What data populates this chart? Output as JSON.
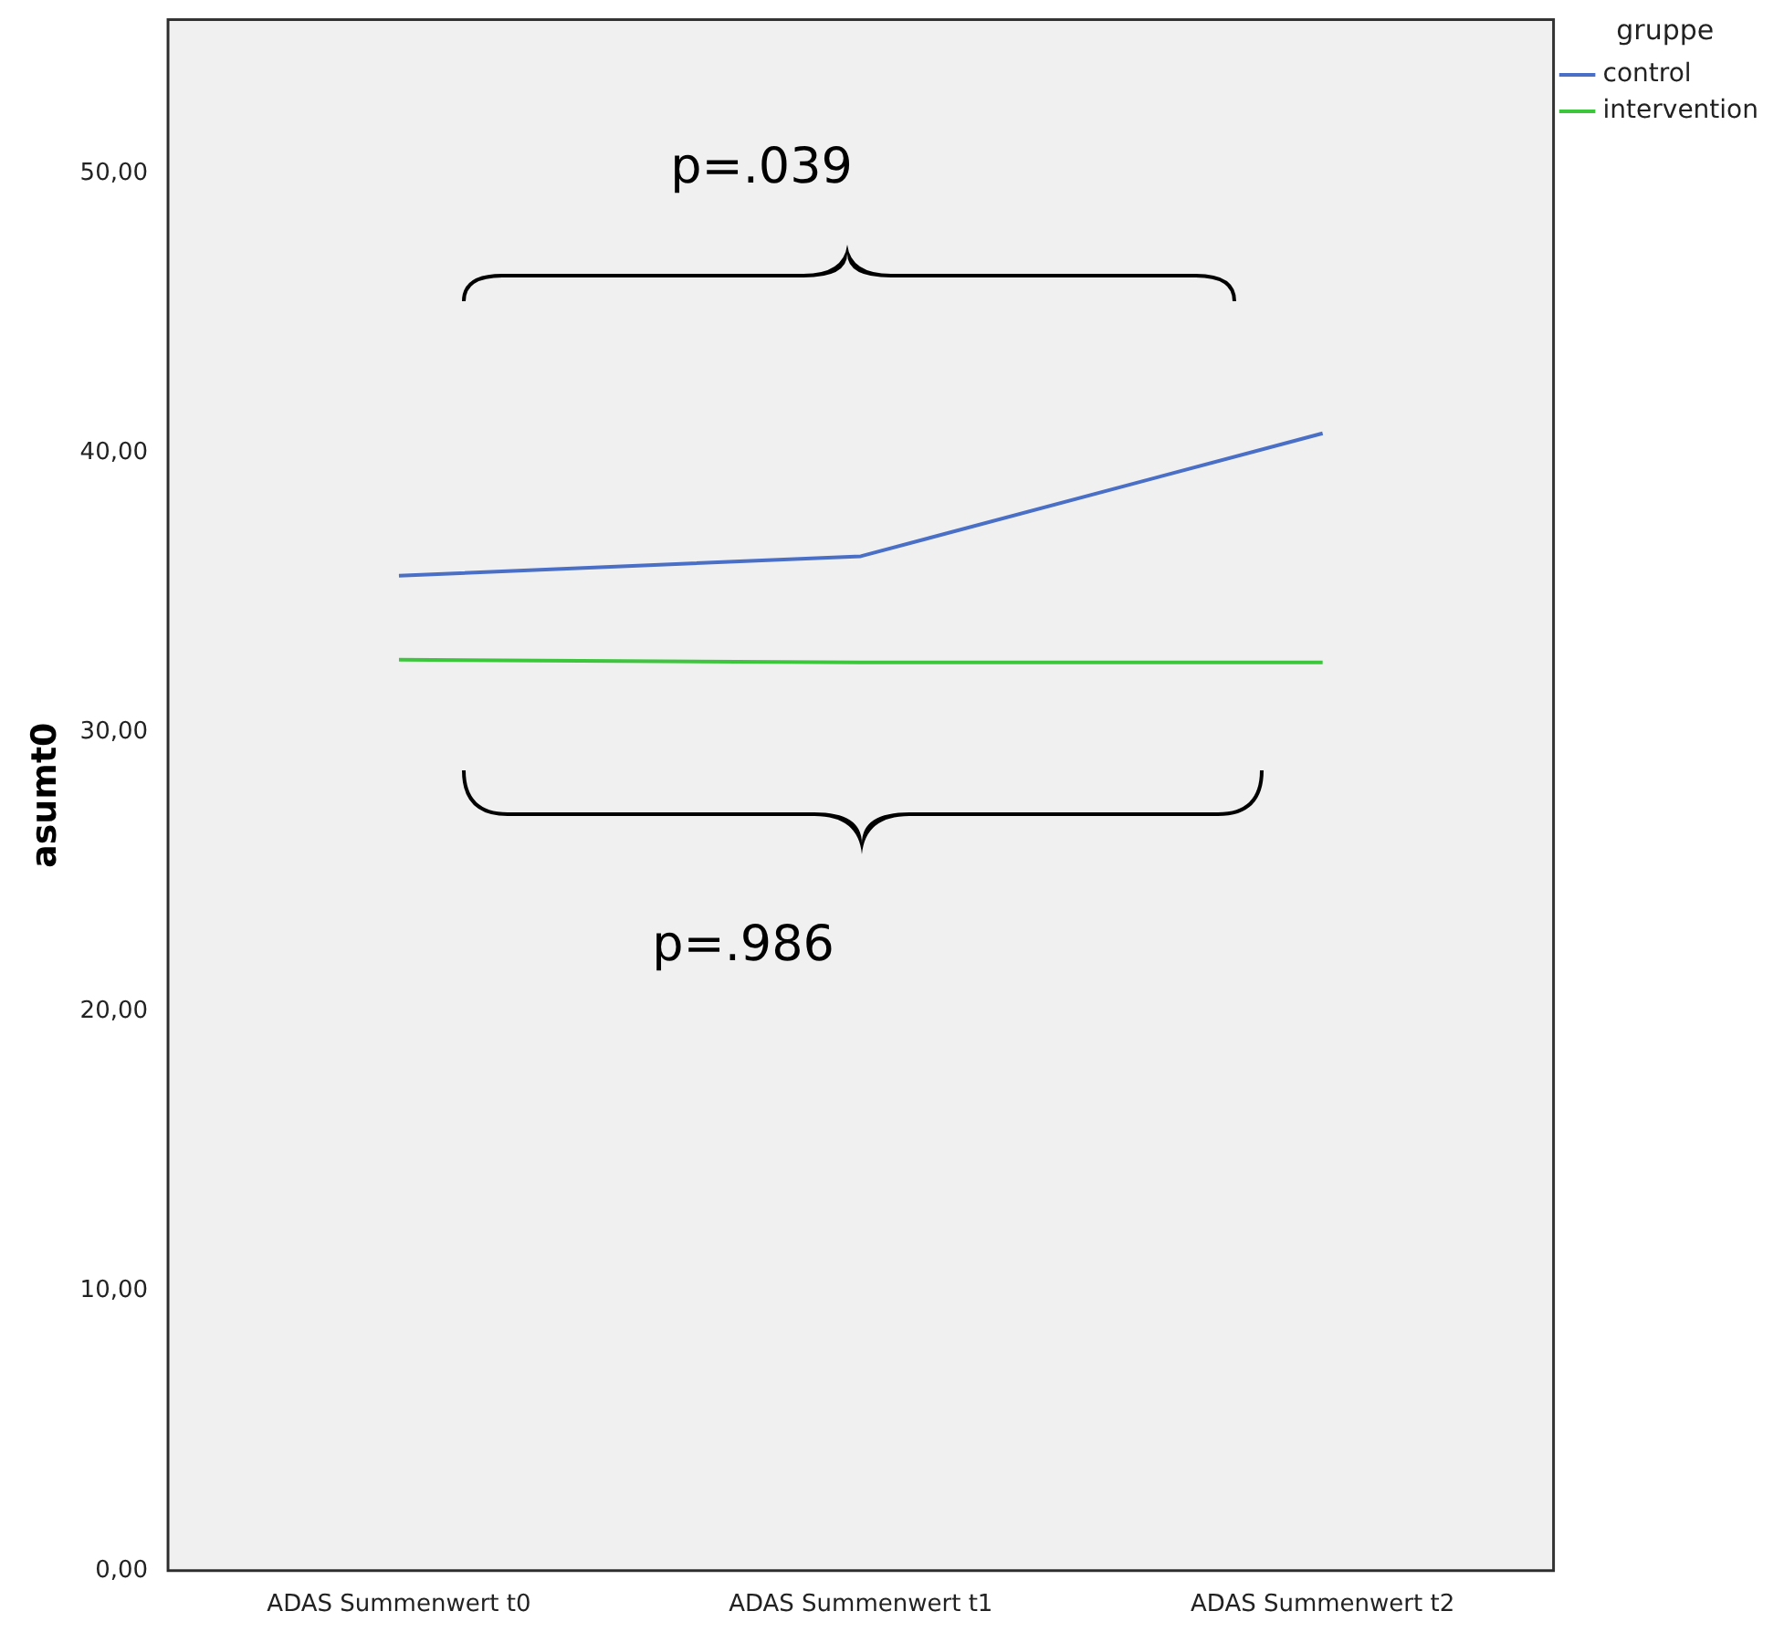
{
  "chart_data": {
    "type": "line",
    "xlabel": null,
    "ylabel": "asumt0",
    "legend_title": "gruppe",
    "legend": "top right",
    "marker": "none",
    "grid": false,
    "categories": [
      "ADAS Summenwert t0",
      "ADAS Summenwert t1",
      "ADAS Summenwert t2"
    ],
    "series": [
      {
        "name": "control",
        "color": "#4a6fc6",
        "values": [
          35.6,
          36.3,
          40.7
        ]
      },
      {
        "name": "intervention",
        "color": "#3cc63c",
        "values": [
          32.6,
          32.5,
          32.5
        ]
      }
    ],
    "ylim": [
      0,
      55.5
    ],
    "yticks": [
      {
        "value": 0,
        "label": "0,00"
      },
      {
        "value": 10,
        "label": "10,00"
      },
      {
        "value": 20,
        "label": "20,00"
      },
      {
        "value": 30,
        "label": "30,00"
      },
      {
        "value": 40,
        "label": "40,00"
      },
      {
        "value": 50,
        "label": "50,00"
      }
    ],
    "annotations": [
      "p=.039",
      "p=.986"
    ]
  }
}
